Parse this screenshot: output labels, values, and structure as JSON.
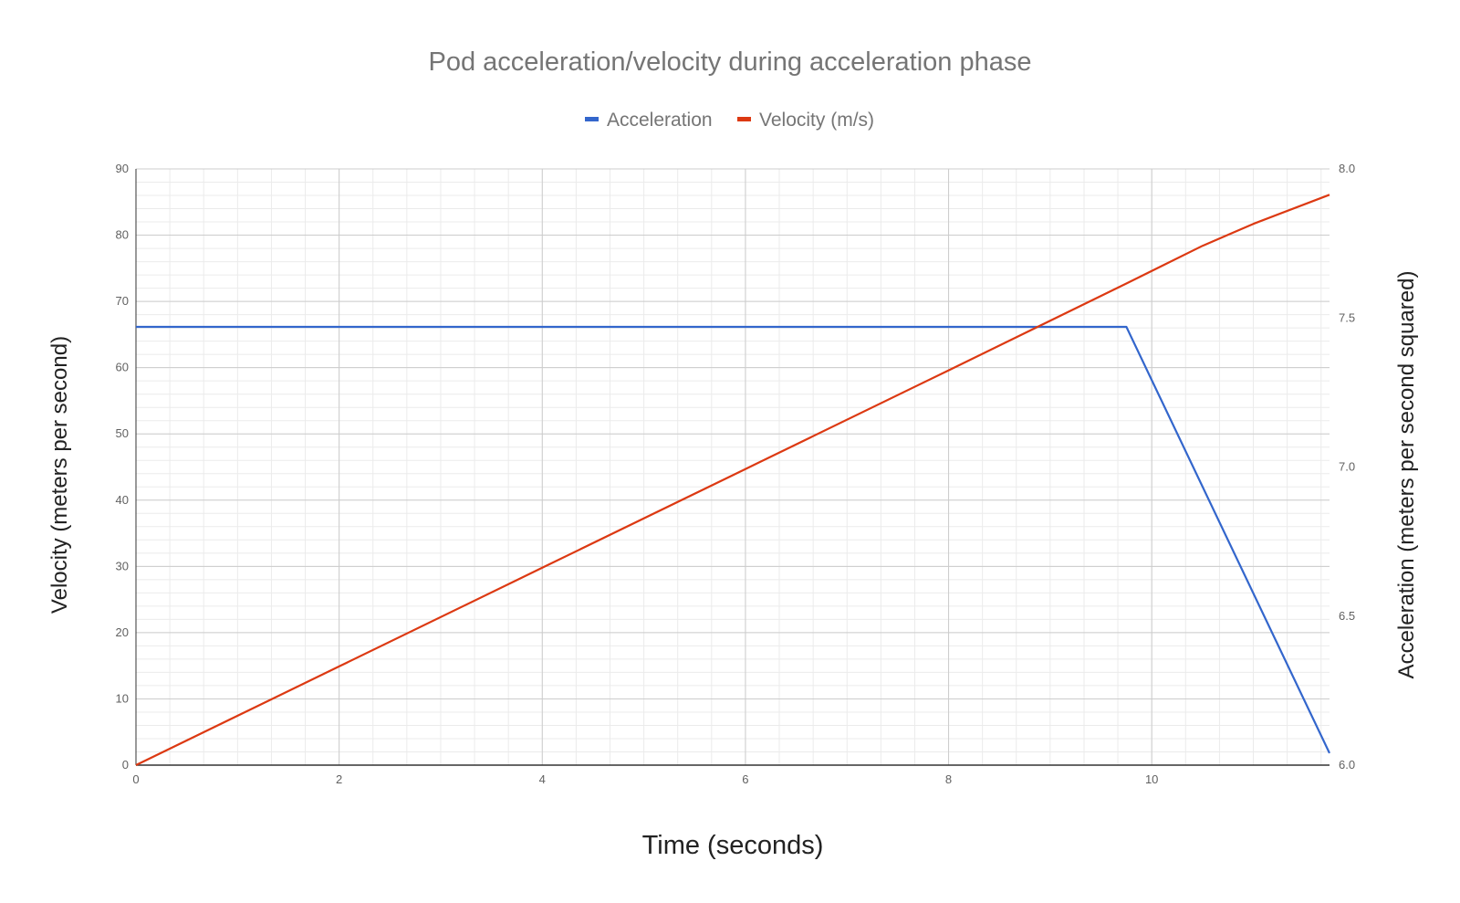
{
  "chart_data": {
    "type": "line",
    "title": "Pod acceleration/velocity during acceleration phase",
    "xlabel": "Time (seconds)",
    "ylabel_left": "Velocity (meters per second)",
    "ylabel_right": "Acceleration (meters per second squared)",
    "xlim": [
      0,
      11.75
    ],
    "ylim_left": [
      0,
      90
    ],
    "ylim_right": [
      6.0,
      8.0
    ],
    "x_ticks": [
      "0",
      "2",
      "4",
      "6",
      "8",
      "10"
    ],
    "x_tick_values": [
      0,
      2,
      4,
      6,
      8,
      10
    ],
    "y_left_ticks": [
      "0",
      "10",
      "20",
      "30",
      "40",
      "50",
      "60",
      "70",
      "80",
      "90"
    ],
    "y_left_tick_values": [
      0,
      10,
      20,
      30,
      40,
      50,
      60,
      70,
      80,
      90
    ],
    "y_right_ticks": [
      "6.0",
      "6.5",
      "7.0",
      "7.5",
      "8.0"
    ],
    "y_right_tick_values": [
      6.0,
      6.5,
      7.0,
      7.5,
      8.0
    ],
    "grid": true,
    "legend_position": "top",
    "series": [
      {
        "name": "Acceleration",
        "axis": "right",
        "color": "#3366cc",
        "points": [
          [
            0,
            7.47
          ],
          [
            9.75,
            7.47
          ],
          [
            11.75,
            6.04
          ]
        ]
      },
      {
        "name": "Velocity (m/s)",
        "axis": "left",
        "color": "#dc3912",
        "points": [
          [
            0,
            0
          ],
          [
            2,
            14.9
          ],
          [
            4,
            29.8
          ],
          [
            6,
            44.7
          ],
          [
            8,
            59.6
          ],
          [
            9.75,
            72.7
          ],
          [
            10.5,
            78.4
          ],
          [
            11.0,
            81.7
          ],
          [
            11.75,
            86.1
          ]
        ]
      }
    ]
  }
}
